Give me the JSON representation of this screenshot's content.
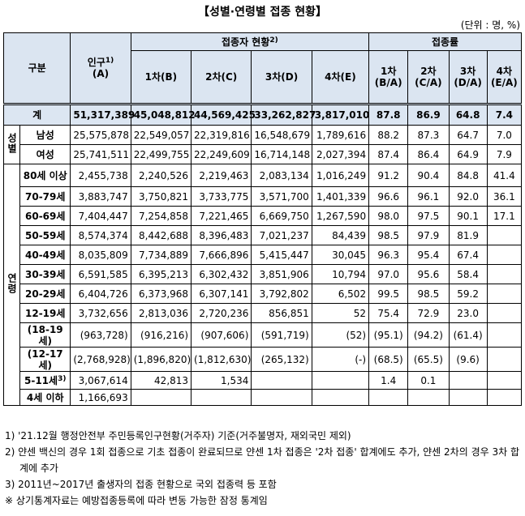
{
  "title": "【성별·연령별 접종 현황】",
  "unit": "(단위 : 명, %)",
  "table": {
    "header": {
      "group": "구분",
      "population": {
        "text": "인구",
        "note": "1)",
        "sub": "(A)"
      },
      "vaccinated": {
        "text": "접종자 현황",
        "note": "2)"
      },
      "rate": "접종률",
      "vaccinated_cols": [
        "1차(B)",
        "2차(C)",
        "3차(D)",
        "4차(E)"
      ],
      "rate_cols": [
        [
          "1차",
          "(B/A)"
        ],
        [
          "2차",
          "(C/A)"
        ],
        [
          "3차",
          "(D/A)"
        ],
        [
          "4차",
          "(E/A)"
        ]
      ]
    },
    "total": {
      "label": "계",
      "cells": [
        "51,317,389",
        "45,048,812",
        "44,569,425",
        "33,262,827",
        "3,817,010",
        "87.8",
        "86.9",
        "64.8",
        "7.4"
      ]
    },
    "groups": [
      {
        "label": "성별",
        "rows": [
          {
            "label": "남성",
            "cells": [
              "25,575,878",
              "22,549,057",
              "22,319,816",
              "16,548,679",
              "1,789,616",
              "88.2",
              "87.3",
              "64.7",
              "7.0"
            ]
          },
          {
            "label": "여성",
            "cells": [
              "25,741,511",
              "22,499,755",
              "22,249,609",
              "16,714,148",
              "2,027,394",
              "87.4",
              "86.4",
              "64.9",
              "7.9"
            ]
          }
        ]
      },
      {
        "label": "연령",
        "rows": [
          {
            "label": "80세 이상",
            "cells": [
              "2,455,738",
              "2,240,526",
              "2,219,463",
              "2,083,134",
              "1,016,249",
              "91.2",
              "90.4",
              "84.8",
              "41.4"
            ]
          },
          {
            "label": "70-79세",
            "cells": [
              "3,883,747",
              "3,750,821",
              "3,733,775",
              "3,571,700",
              "1,401,339",
              "96.6",
              "96.1",
              "92.0",
              "36.1"
            ]
          },
          {
            "label": "60-69세",
            "cells": [
              "7,404,447",
              "7,254,858",
              "7,221,465",
              "6,669,750",
              "1,267,590",
              "98.0",
              "97.5",
              "90.1",
              "17.1"
            ]
          },
          {
            "label": "50-59세",
            "cells": [
              "8,574,374",
              "8,442,688",
              "8,396,483",
              "7,021,237",
              "84,439",
              "98.5",
              "97.9",
              "81.9",
              null
            ]
          },
          {
            "label": "40-49세",
            "cells": [
              "8,035,809",
              "7,734,889",
              "7,666,896",
              "5,415,447",
              "30,045",
              "96.3",
              "95.4",
              "67.4",
              null
            ]
          },
          {
            "label": "30-39세",
            "cells": [
              "6,591,585",
              "6,395,213",
              "6,302,432",
              "3,851,906",
              "10,794",
              "97.0",
              "95.6",
              "58.4",
              null
            ]
          },
          {
            "label": "20-29세",
            "cells": [
              "6,404,726",
              "6,373,968",
              "6,307,141",
              "3,792,802",
              "6,502",
              "99.5",
              "98.5",
              "59.2",
              null
            ]
          },
          {
            "label": "12-19세",
            "cells": [
              "3,732,656",
              "2,813,036",
              "2,720,236",
              "856,851",
              "52",
              "75.4",
              "72.9",
              "23.0",
              null
            ]
          },
          {
            "label": "(18-19세)",
            "cells": [
              "(963,728)",
              "(916,216)",
              "(907,606)",
              "(591,719)",
              "(52)",
              "(95.1)",
              "(94.2)",
              "(61.4)",
              null
            ]
          },
          {
            "label": "(12-17세)",
            "cells": [
              "(2,768,928)",
              "(1,896,820)",
              "(1,812,630)",
              "(265,132)",
              "(-)",
              "(68.5)",
              "(65.5)",
              "(9.6)",
              null
            ]
          },
          {
            "label": "5-11세",
            "note": "3)",
            "cells": [
              "3,067,614",
              "42,813",
              "1,534",
              null,
              null,
              "1.4",
              "0.1",
              null,
              null
            ]
          },
          {
            "label": "4세 이하",
            "cells": [
              "1,166,693",
              null,
              null,
              null,
              null,
              null,
              null,
              null,
              null
            ]
          }
        ]
      }
    ]
  },
  "footnotes": [
    "1) '21.12월 행정안전부 주민등록인구현황(거주자) 기준(거주불명자, 재외국민 제외)",
    "2) 얀센 백신의 경우 1회 접종으로 기초 접종이 완료되므로 얀센 1차 접종은 '2차 접종' 합계에도 추가, 얀센 2차의 경우 3차 합계에 추가",
    "3) 2011년~2017년 출생자의 접종 현황으로 국외 접종력 등 포함",
    "※ 상기통계자료는 예방접종등록에 따라 변동 가능한 잠정 통계임"
  ]
}
